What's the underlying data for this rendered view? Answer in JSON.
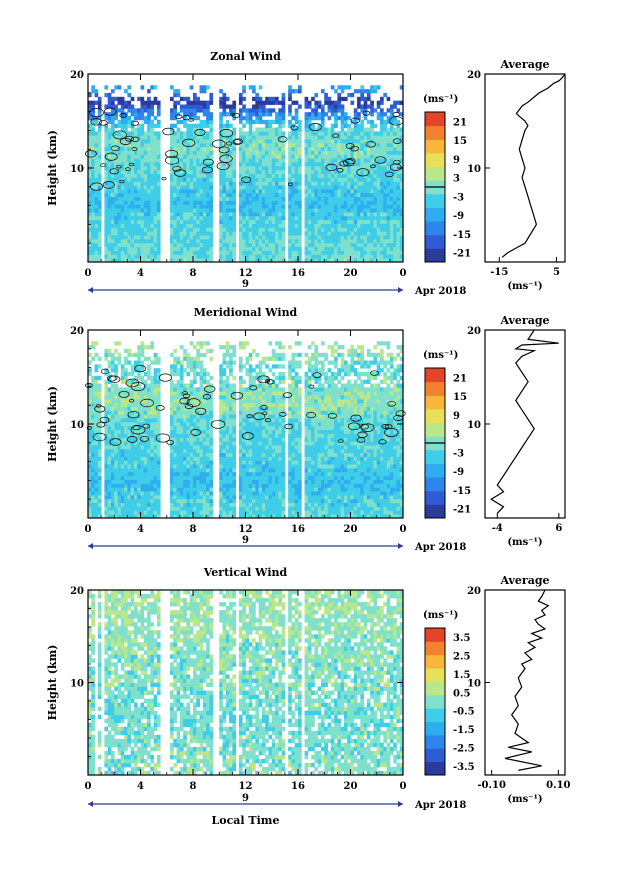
{
  "chart_data": [
    {
      "type": "heatmap",
      "title": "Zonal Wind",
      "ylabel": "Height (km)",
      "xlabel": "",
      "xlim": [
        0,
        24
      ],
      "ylim": [
        0,
        20
      ],
      "x_ticks": [
        "0",
        "4",
        "8",
        "12",
        "16",
        "20",
        "0"
      ],
      "y_ticks": [
        "10",
        "20"
      ],
      "date_label": "9",
      "month_label": "Apr 2018",
      "colorbar_unit": "(ms⁻¹)",
      "colorbar_ticks": [
        "21",
        "15",
        "9",
        "3",
        "-3",
        "-9",
        "-15",
        "-21"
      ],
      "colorbar_range": [
        -24,
        24
      ],
      "zero_contour": true,
      "data_gaps_hours": [
        [
          1.1,
          1.3
        ],
        [
          5.6,
          6.2
        ],
        [
          9.6,
          9.9
        ],
        [
          11.3,
          11.5
        ],
        [
          12.9,
          13.1
        ],
        [
          15.0,
          15.2
        ],
        [
          16.3,
          16.5
        ],
        [
          17.9,
          18.1
        ]
      ],
      "profile_rows": [
        {
          "z": 19,
          "v": -6
        },
        {
          "z": 17,
          "v": -22
        },
        {
          "z": 16,
          "v": -14
        },
        {
          "z": 14,
          "v": -2
        },
        {
          "z": 12,
          "v": 0
        },
        {
          "z": 10,
          "v": -2
        },
        {
          "z": 8,
          "v": -4
        },
        {
          "z": 6,
          "v": -6
        },
        {
          "z": 4,
          "v": -3
        },
        {
          "z": 2,
          "v": -2
        },
        {
          "z": 0.5,
          "v": -1
        }
      ],
      "average": {
        "title": "Average",
        "xlabel": "(ms⁻¹)",
        "x_ticks": [
          "-15",
          "5"
        ],
        "xlim": [
          -20,
          8
        ],
        "y_ticks": [
          "10",
          "20"
        ],
        "x": [
          -14,
          -12,
          -9,
          -6,
          -4,
          -2,
          -3,
          -4,
          -5,
          -6,
          -7,
          -6,
          -7,
          -8,
          -7,
          -6,
          -5,
          -6,
          -8,
          -9,
          -8,
          -7,
          -5,
          -3,
          -1,
          2,
          4,
          6,
          7,
          8
        ],
        "z": [
          0.5,
          1.0,
          1.5,
          2.0,
          3.0,
          4.0,
          5.0,
          6.0,
          7.0,
          8.0,
          9.0,
          10.0,
          11.0,
          12.0,
          13.0,
          14.0,
          14.5,
          15.0,
          15.5,
          15.8,
          16.2,
          16.6,
          17.0,
          17.5,
          18.0,
          18.5,
          19.0,
          19.3,
          19.6,
          20.0
        ]
      }
    },
    {
      "type": "heatmap",
      "title": "Meridional Wind",
      "ylabel": "Height (km)",
      "xlabel": "",
      "xlim": [
        0,
        24
      ],
      "ylim": [
        0,
        20
      ],
      "x_ticks": [
        "0",
        "4",
        "8",
        "12",
        "16",
        "20",
        "0"
      ],
      "y_ticks": [
        "10",
        "20"
      ],
      "date_label": "9",
      "month_label": "Apr 2018",
      "colorbar_unit": "(ms⁻¹)",
      "colorbar_ticks": [
        "21",
        "15",
        "9",
        "3",
        "-3",
        "-9",
        "-15",
        "-21"
      ],
      "colorbar_range": [
        -24,
        24
      ],
      "zero_contour": true,
      "data_gaps_hours": [
        [
          1.1,
          1.3
        ],
        [
          5.6,
          6.2
        ],
        [
          9.6,
          9.9
        ],
        [
          11.3,
          11.5
        ],
        [
          12.9,
          13.1
        ],
        [
          15.0,
          15.2
        ],
        [
          16.3,
          16.5
        ],
        [
          17.9,
          18.1
        ]
      ],
      "profile_rows": [
        {
          "z": 18,
          "v": 2
        },
        {
          "z": 16,
          "v": -2
        },
        {
          "z": 14,
          "v": 0
        },
        {
          "z": 12,
          "v": 1
        },
        {
          "z": 10,
          "v": -2
        },
        {
          "z": 8,
          "v": -3
        },
        {
          "z": 6,
          "v": -4
        },
        {
          "z": 4,
          "v": -6
        },
        {
          "z": 2,
          "v": -4
        },
        {
          "z": 0.5,
          "v": -3
        }
      ],
      "average": {
        "title": "Average",
        "xlabel": "(ms⁻¹)",
        "x_ticks": [
          "-4",
          "6"
        ],
        "xlim": [
          -6,
          7
        ],
        "y_ticks": [
          "10",
          "20"
        ],
        "x": [
          -4,
          -3,
          -5,
          -3,
          -4,
          -3,
          -2,
          -1,
          0,
          1,
          2,
          1,
          0,
          -1,
          0,
          1,
          0,
          -1,
          0,
          1,
          2,
          -1,
          0,
          6,
          1,
          2
        ],
        "z": [
          0.5,
          1.2,
          2.0,
          2.8,
          3.5,
          4.5,
          5.5,
          6.5,
          7.5,
          8.5,
          9.5,
          10.5,
          11.5,
          12.5,
          13.5,
          14.5,
          15.5,
          16.5,
          17.2,
          17.5,
          17.8,
          18.0,
          18.4,
          18.6,
          19.0,
          20.0
        ]
      }
    },
    {
      "type": "heatmap",
      "title": "Vertical Wind",
      "ylabel": "Height (km)",
      "xlabel": "Local Time",
      "xlim": [
        0,
        24
      ],
      "ylim": [
        0,
        20
      ],
      "x_ticks": [
        "0",
        "4",
        "8",
        "12",
        "16",
        "20",
        "0"
      ],
      "y_ticks": [
        "10",
        "20"
      ],
      "date_label": "9",
      "month_label": "Apr 2018",
      "colorbar_unit": "(ms⁻¹)",
      "colorbar_ticks": [
        "3.5",
        "2.5",
        "1.5",
        "0.5",
        "-0.5",
        "-1.5",
        "-2.5",
        "-3.5"
      ],
      "colorbar_range": [
        -4,
        4
      ],
      "zero_contour": false,
      "data_gaps_hours": [
        [
          0.6,
          0.8
        ],
        [
          1.1,
          1.3
        ],
        [
          5.6,
          6.2
        ],
        [
          9.6,
          9.9
        ],
        [
          11.3,
          11.5
        ],
        [
          12.9,
          13.1
        ],
        [
          15.0,
          15.2
        ],
        [
          16.3,
          16.5
        ],
        [
          17.9,
          18.1
        ]
      ],
      "profile_rows": [
        {
          "z": 18,
          "v": 0.3
        },
        {
          "z": 14,
          "v": 0.1
        },
        {
          "z": 10,
          "v": 0
        },
        {
          "z": 6,
          "v": -0.2
        },
        {
          "z": 2,
          "v": 0
        }
      ],
      "average": {
        "title": "Average",
        "xlabel": "(ms⁻¹)",
        "x_ticks": [
          "-0.10",
          "0.10"
        ],
        "xlim": [
          -0.12,
          0.12
        ],
        "y_ticks": [
          "10",
          "20"
        ],
        "x": [
          -0.02,
          0.05,
          -0.06,
          0.02,
          -0.05,
          0.01,
          -0.03,
          -0.02,
          -0.04,
          -0.02,
          -0.03,
          -0.01,
          -0.02,
          0.0,
          -0.01,
          0.02,
          0.0,
          0.03,
          0.01,
          0.05,
          0.02,
          0.06,
          0.04,
          0.03,
          0.06,
          0.05,
          0.07,
          0.04,
          0.05,
          0.06
        ],
        "z": [
          0.5,
          1.0,
          1.8,
          2.5,
          3.0,
          3.5,
          4.5,
          5.5,
          6.5,
          7.5,
          8.5,
          9.5,
          10.5,
          11.5,
          12.0,
          12.5,
          13.2,
          13.8,
          14.3,
          14.8,
          15.3,
          15.8,
          16.3,
          16.8,
          17.3,
          17.8,
          18.3,
          18.8,
          19.3,
          20.0
        ]
      }
    }
  ]
}
